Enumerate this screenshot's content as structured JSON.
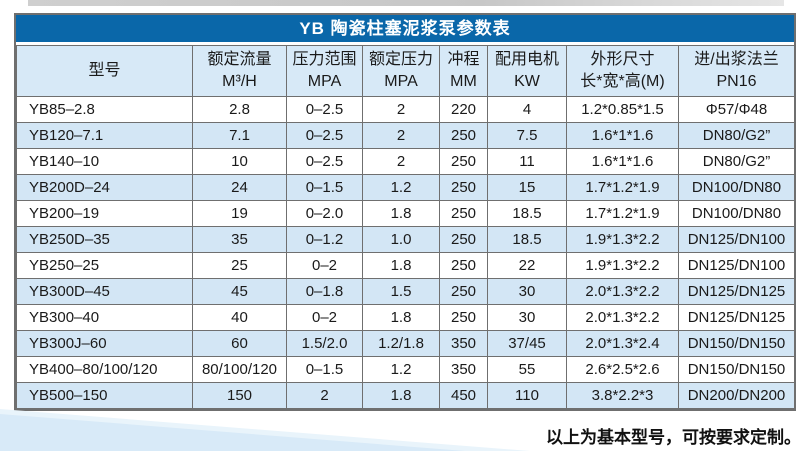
{
  "page": {
    "title": "YB 陶瓷柱塞泥浆泵参数表",
    "footer_note": "以上为基本型号，可按要求定制。"
  },
  "colors": {
    "title_bar_bg": "#0a67a9",
    "title_text": "#ffffff",
    "header_row_bg": "#d7e9f7",
    "stripe_row_bg": "#d3e6f5",
    "border": "#6f6f6f",
    "triangle_main": "#d8eaf8",
    "triangle_light": "#e9f4fb"
  },
  "table": {
    "columns": [
      {
        "line1": "型号",
        "line2": ""
      },
      {
        "line1": "额定流量",
        "line2": "M³/H"
      },
      {
        "line1": "压力范围",
        "line2": "MPA"
      },
      {
        "line1": "额定压力",
        "line2": "MPA"
      },
      {
        "line1": "冲程",
        "line2": "MM"
      },
      {
        "line1": "配用电机",
        "line2": "KW"
      },
      {
        "line1": "外形尺寸",
        "line2": "长*宽*高(M)"
      },
      {
        "line1": "进/出浆法兰",
        "line2": "PN16"
      }
    ],
    "rows": [
      [
        "YB85–2.8",
        "2.8",
        "0–2.5",
        "2",
        "220",
        "4",
        "1.2*0.85*1.5",
        "Φ57/Φ48"
      ],
      [
        "YB120–7.1",
        "7.1",
        "0–2.5",
        "2",
        "250",
        "7.5",
        "1.6*1*1.6",
        "DN80/G2”"
      ],
      [
        "YB140–10",
        "10",
        "0–2.5",
        "2",
        "250",
        "11",
        "1.6*1*1.6",
        "DN80/G2”"
      ],
      [
        "YB200D–24",
        "24",
        "0–1.5",
        "1.2",
        "250",
        "15",
        "1.7*1.2*1.9",
        "DN100/DN80"
      ],
      [
        "YB200–19",
        "19",
        "0–2.0",
        "1.8",
        "250",
        "18.5",
        "1.7*1.2*1.9",
        "DN100/DN80"
      ],
      [
        "YB250D–35",
        "35",
        "0–1.2",
        "1.0",
        "250",
        "18.5",
        "1.9*1.3*2.2",
        "DN125/DN100"
      ],
      [
        "YB250–25",
        "25",
        "0–2",
        "1.8",
        "250",
        "22",
        "1.9*1.3*2.2",
        "DN125/DN100"
      ],
      [
        "YB300D–45",
        "45",
        "0–1.8",
        "1.5",
        "250",
        "30",
        "2.0*1.3*2.2",
        "DN125/DN125"
      ],
      [
        "YB300–40",
        "40",
        "0–2",
        "1.8",
        "250",
        "30",
        "2.0*1.3*2.2",
        "DN125/DN125"
      ],
      [
        "YB300J–60",
        "60",
        "1.5/2.0",
        "1.2/1.8",
        "350",
        "37/45",
        "2.0*1.3*2.4",
        "DN150/DN150"
      ],
      [
        "YB400–80/100/120",
        "80/100/120",
        "0–1.5",
        "1.2",
        "350",
        "55",
        "2.6*2.5*2.6",
        "DN150/DN150"
      ],
      [
        "YB500–150",
        "150",
        "2",
        "1.8",
        "450",
        "110",
        "3.8*2.2*3",
        "DN200/DN200"
      ]
    ]
  }
}
